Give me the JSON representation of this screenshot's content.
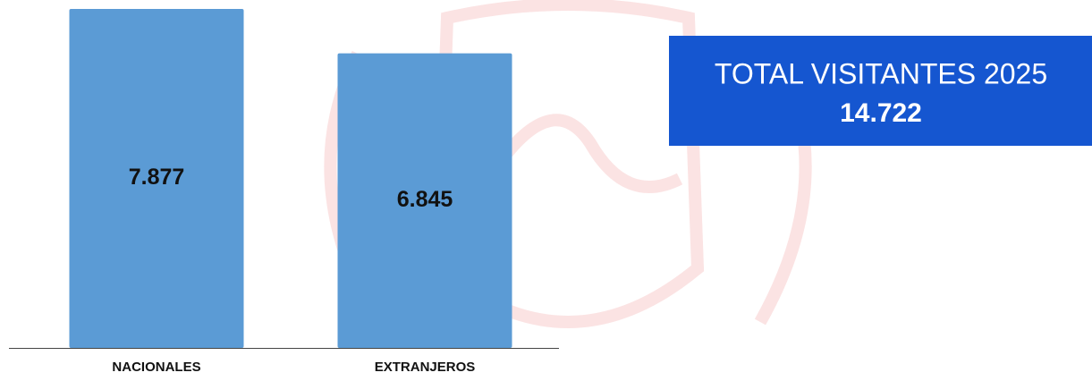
{
  "chart_data": {
    "type": "bar",
    "categories": [
      "NACIONALES",
      "EXTRANJEROS"
    ],
    "values": [
      7877,
      6845
    ],
    "value_labels": [
      "7.877",
      "6.845"
    ],
    "color": "#5b9bd5",
    "ylim": [
      0,
      8000
    ]
  },
  "kpi": {
    "title": "TOTAL VISITANTES 2025",
    "value": "14.722"
  }
}
